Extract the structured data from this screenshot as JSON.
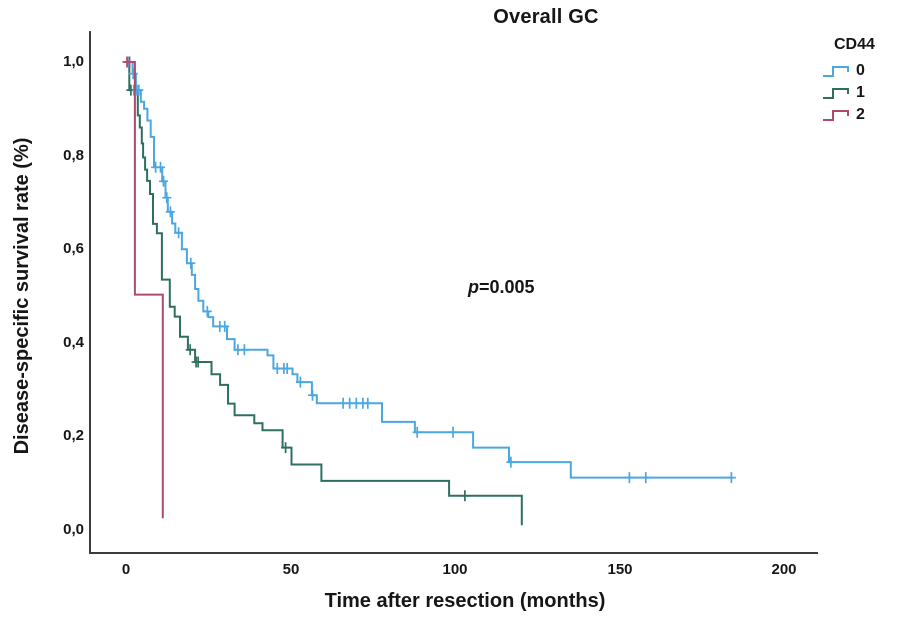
{
  "title": "Overall GC",
  "p_annotation": {
    "prefix": "p",
    "rest": "=0.005"
  },
  "axes": {
    "x_label": "Time after resection (months)",
    "y_label": "Disease-specific survival rate (%)",
    "x_tick_labels": [
      "0",
      "50",
      "100",
      "150",
      "200"
    ],
    "y_tick_labels": [
      "1,0",
      "0,8",
      "0,6",
      "0,4",
      "0,2",
      "0,0"
    ]
  },
  "legend": {
    "title": "CD44",
    "items": [
      {
        "label": "0",
        "color": "#4BA7E0"
      },
      {
        "label": "1",
        "color": "#2E6F62"
      },
      {
        "label": "2",
        "color": "#AE4A6E"
      }
    ]
  },
  "colors": {
    "axis_line": "#3c3c3c",
    "text": "#161616",
    "background": "#ffffff"
  },
  "chart_data": {
    "type": "line",
    "subtype": "kaplan_meier_step",
    "title": "Overall GC",
    "xlabel": "Time after resection (months)",
    "ylabel": "Disease-specific survival rate (%)",
    "xlim": [
      0,
      210
    ],
    "ylim": [
      0.0,
      1.0
    ],
    "x_tick_values": [
      0,
      50,
      100,
      150,
      200
    ],
    "y_tick_values": [
      1.0,
      0.8,
      0.6,
      0.4,
      0.2,
      0.0
    ],
    "grid": false,
    "legend_title": "CD44",
    "legend_position": "top-right",
    "annotation": "p=0.005",
    "series": [
      {
        "name": "0",
        "color": "#4BA7E0",
        "end_time": 184,
        "points": [
          [
            0,
            1.0
          ],
          [
            2,
            0.975
          ],
          [
            3,
            0.94
          ],
          [
            4.5,
            0.915
          ],
          [
            5.5,
            0.9
          ],
          [
            6.5,
            0.875
          ],
          [
            7.5,
            0.84
          ],
          [
            8.5,
            0.775
          ],
          [
            11,
            0.745
          ],
          [
            12,
            0.71
          ],
          [
            12.7,
            0.68
          ],
          [
            14,
            0.655
          ],
          [
            15,
            0.635
          ],
          [
            17,
            0.6
          ],
          [
            18.5,
            0.57
          ],
          [
            20,
            0.545
          ],
          [
            21,
            0.515
          ],
          [
            22,
            0.49
          ],
          [
            23.5,
            0.467
          ],
          [
            25,
            0.455
          ],
          [
            26.5,
            0.435
          ],
          [
            30.7,
            0.408
          ],
          [
            33,
            0.385
          ],
          [
            43,
            0.373
          ],
          [
            44.8,
            0.345
          ],
          [
            50.6,
            0.333
          ],
          [
            52.1,
            0.316
          ],
          [
            56.5,
            0.288
          ],
          [
            58,
            0.271
          ],
          [
            77.8,
            0.231
          ],
          [
            87.8,
            0.209
          ],
          [
            105.5,
            0.176
          ],
          [
            116.4,
            0.145
          ],
          [
            135.2,
            0.112
          ]
        ],
        "censor_times": [
          0.6,
          2.2,
          3.3,
          3.9,
          9,
          10.5,
          11.4,
          12.4,
          13.5,
          16,
          19.7,
          24.7,
          28.5,
          30,
          34,
          36,
          46,
          48,
          49,
          53,
          56.7,
          66,
          68,
          70,
          72,
          73.5,
          88.5,
          99.4,
          117,
          153,
          158,
          184
        ]
      },
      {
        "name": "1",
        "color": "#2E6F62",
        "end_time": 120.3,
        "points": [
          [
            0,
            1.0
          ],
          [
            1,
            0.94
          ],
          [
            3.6,
            0.886
          ],
          [
            4.2,
            0.86
          ],
          [
            4.8,
            0.826
          ],
          [
            5.2,
            0.796
          ],
          [
            5.8,
            0.77
          ],
          [
            6.4,
            0.746
          ],
          [
            7.3,
            0.718
          ],
          [
            8.2,
            0.654
          ],
          [
            9.4,
            0.634
          ],
          [
            10.9,
            0.535
          ],
          [
            13.3,
            0.477
          ],
          [
            14.8,
            0.456
          ],
          [
            16.4,
            0.413
          ],
          [
            18.8,
            0.385
          ],
          [
            21,
            0.359
          ],
          [
            26,
            0.333
          ],
          [
            28.6,
            0.31
          ],
          [
            31,
            0.27
          ],
          [
            33,
            0.245
          ],
          [
            39,
            0.228
          ],
          [
            41.5,
            0.213
          ],
          [
            47.6,
            0.176
          ],
          [
            50.3,
            0.14
          ],
          [
            59.4,
            0.105
          ],
          [
            98.2,
            0.073
          ],
          [
            120.3,
            0.01
          ]
        ],
        "censor_times": [
          1.5,
          2.5,
          19.5,
          21.3,
          21.9,
          48.5,
          103
        ]
      },
      {
        "name": "2",
        "color": "#AE4A6E",
        "end_time": 11.2,
        "points": [
          [
            0,
            1.0
          ],
          [
            2.7,
            0.503
          ],
          [
            11.2,
            0.025
          ]
        ],
        "censor_times": [
          0.3,
          1.1
        ]
      }
    ]
  }
}
